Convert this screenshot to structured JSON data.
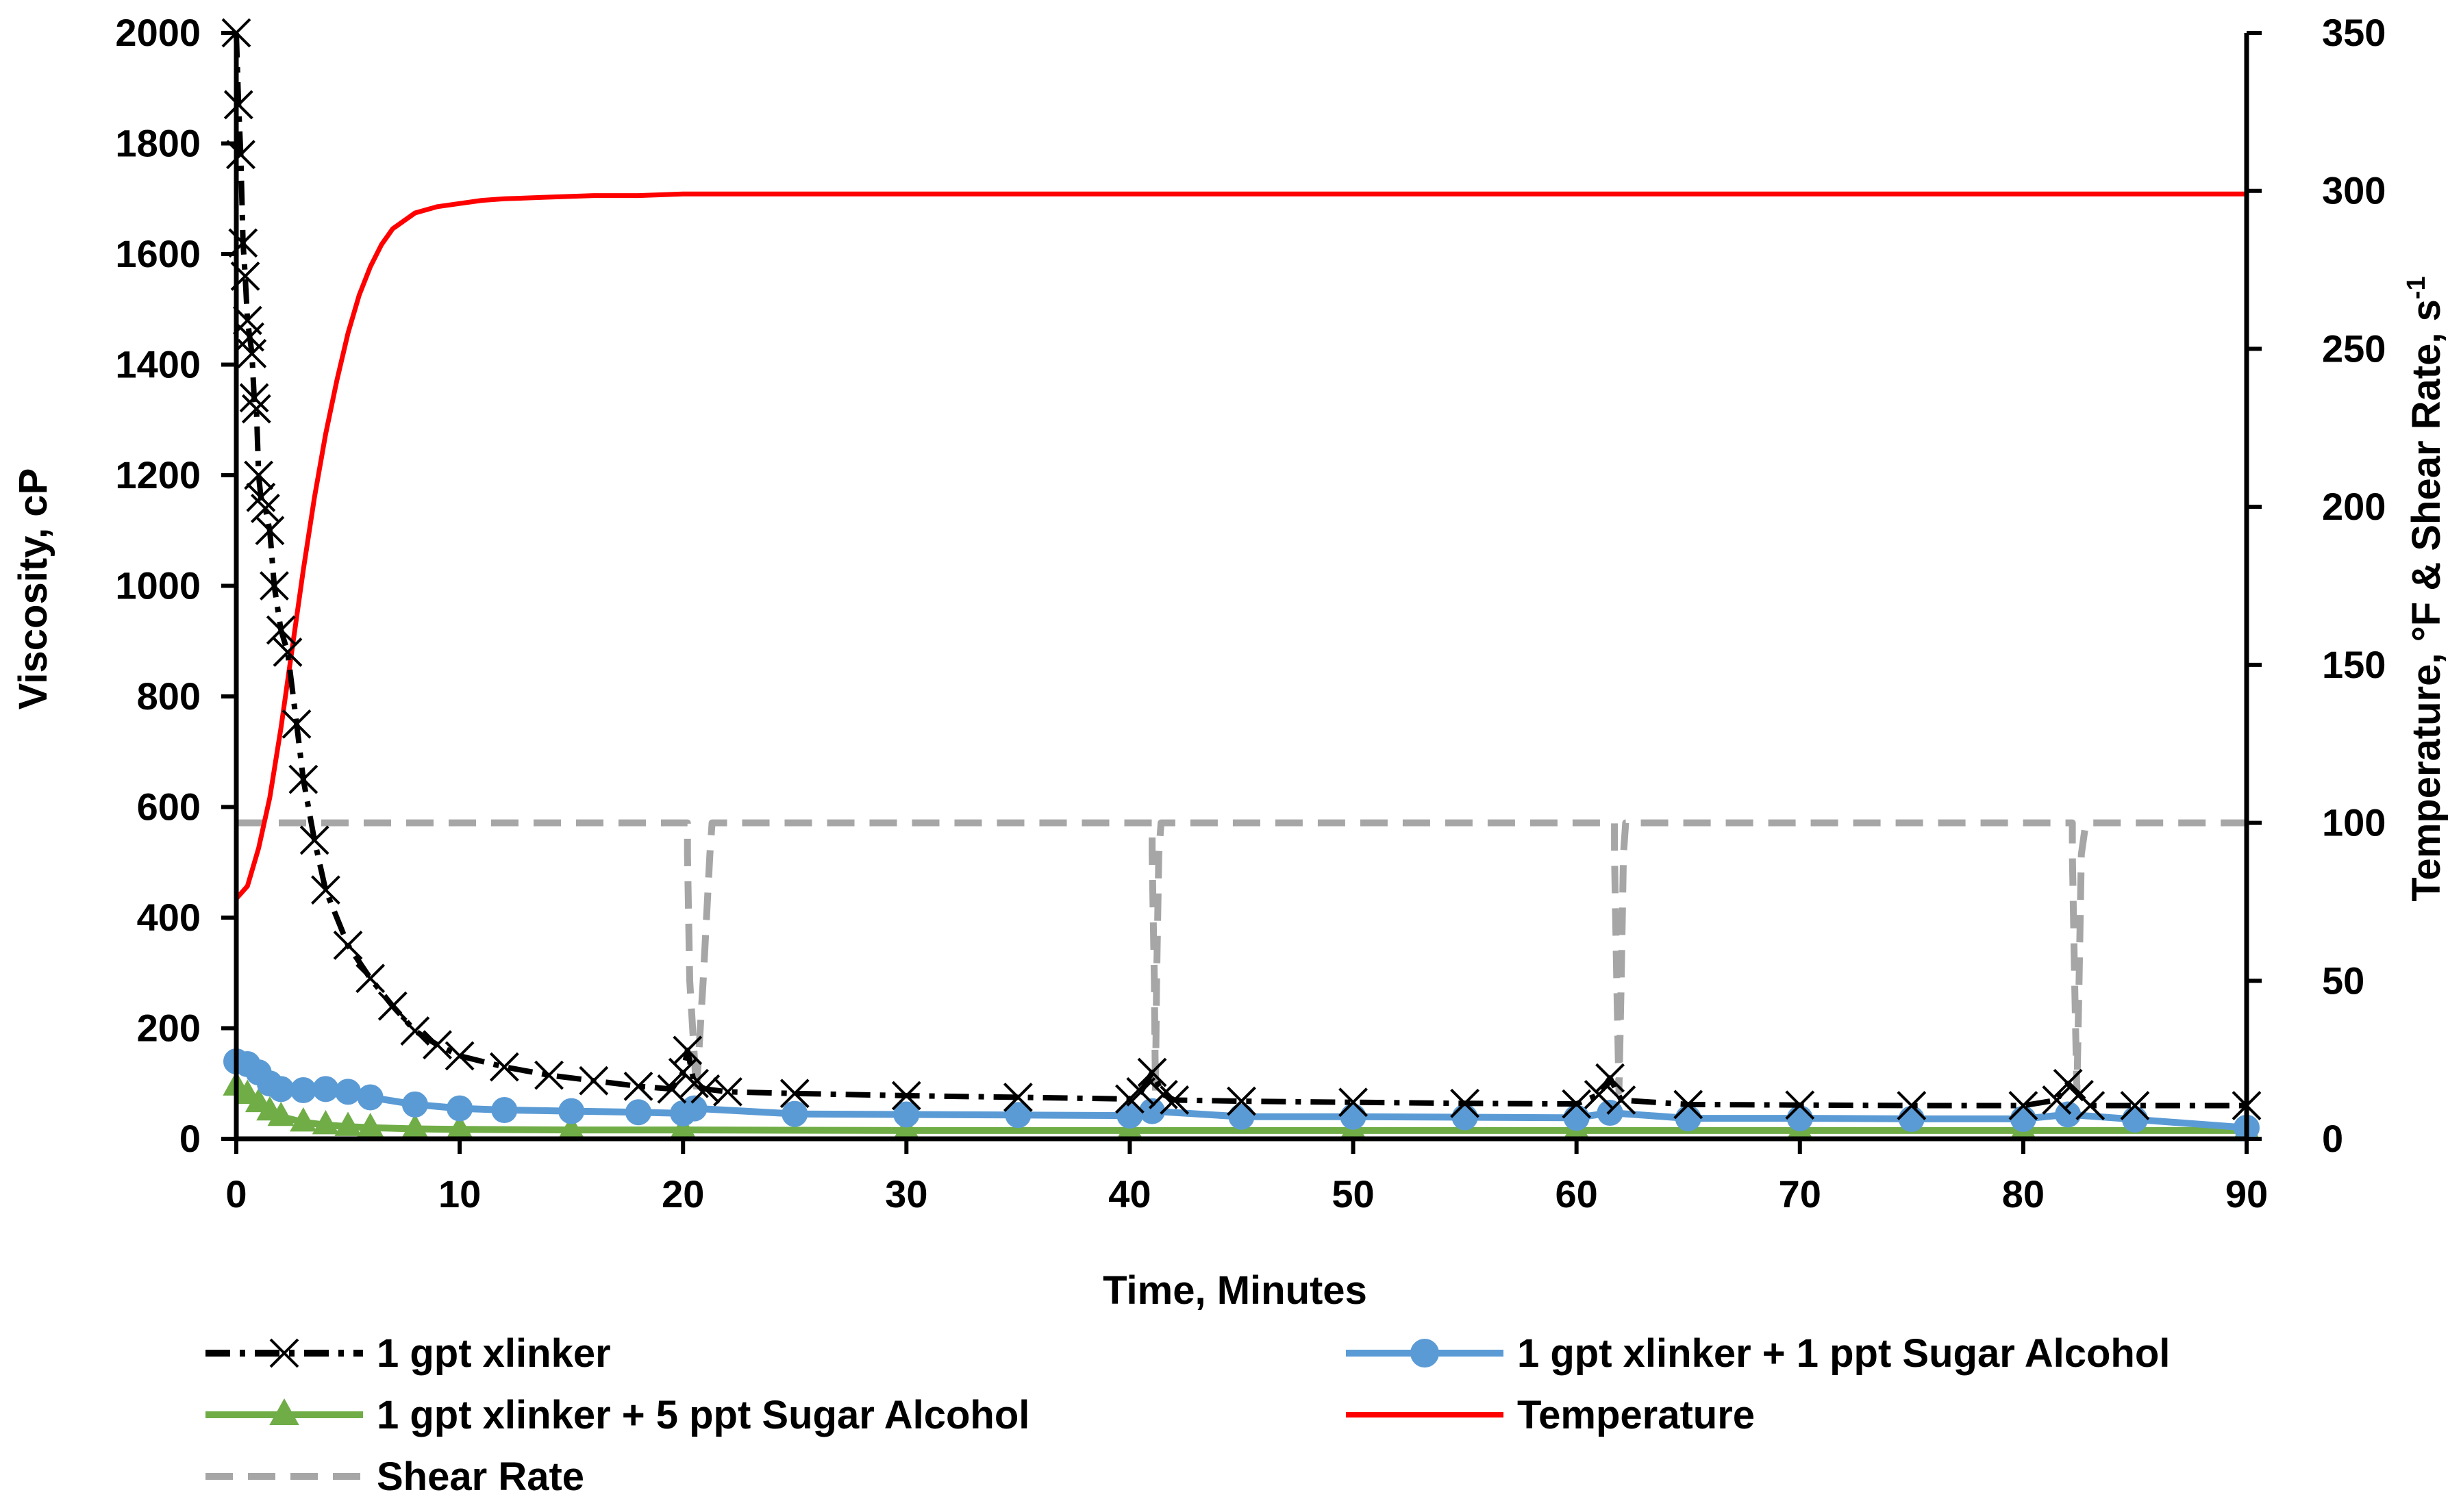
{
  "chart_data": {
    "type": "line",
    "xlabel": "Time, Minutes",
    "ylabel": "Viscosity, cP",
    "y2label_main": "Temperature, °F & Shear Rate, s",
    "y2label_sup": "-1",
    "xlim": [
      0,
      90
    ],
    "ylim": [
      0,
      2000
    ],
    "y2lim": [
      0,
      350
    ],
    "x_ticks": [
      "0",
      "10",
      "20",
      "30",
      "40",
      "50",
      "60",
      "70",
      "80",
      "90"
    ],
    "y_ticks": [
      "0",
      "200",
      "400",
      "600",
      "800",
      "1000",
      "1200",
      "1400",
      "1600",
      "1800",
      "2000"
    ],
    "y2_ticks": [
      "0",
      "50",
      "100",
      "150",
      "200",
      "250",
      "300",
      "350"
    ],
    "grid": false,
    "legend_position": "bottom",
    "series": [
      {
        "name": "1 gpt xlinker",
        "axis": "left",
        "color": "#000000",
        "marker": "x",
        "style": "dash-dot",
        "x": [
          0,
          0.1,
          0.2,
          0.3,
          0.4,
          0.5,
          0.6,
          0.7,
          0.8,
          0.9,
          1.0,
          1.1,
          1.3,
          1.5,
          1.7,
          2.0,
          2.3,
          2.7,
          3.0,
          3.5,
          4,
          5,
          6,
          7,
          8,
          9,
          10,
          12,
          14,
          16,
          18,
          19.5,
          20,
          20.2,
          20.5,
          21,
          22,
          25,
          30,
          35,
          40,
          40.5,
          41,
          41.5,
          42,
          45,
          50,
          55,
          60,
          61,
          61.5,
          62,
          65,
          70,
          75,
          80,
          81.5,
          82,
          82.5,
          83,
          85,
          90
        ],
        "values": [
          2000,
          1870,
          1780,
          1620,
          1560,
          1480,
          1450,
          1420,
          1340,
          1320,
          1200,
          1160,
          1140,
          1100,
          1000,
          920,
          880,
          750,
          650,
          540,
          450,
          350,
          290,
          240,
          195,
          170,
          150,
          130,
          115,
          105,
          95,
          90,
          120,
          160,
          100,
          90,
          85,
          82,
          78,
          75,
          72,
          85,
          120,
          80,
          70,
          68,
          66,
          64,
          63,
          80,
          110,
          70,
          62,
          61,
          60,
          60,
          70,
          100,
          80,
          60,
          60,
          60
        ]
      },
      {
        "name": "1 gpt xlinker + 1 ppt Sugar Alcohol",
        "axis": "left",
        "color": "#5B9BD5",
        "marker": "circle",
        "style": "solid",
        "x": [
          0,
          0.5,
          1,
          1.5,
          2,
          3,
          4,
          5,
          6,
          8,
          10,
          12,
          15,
          18,
          20,
          20.5,
          25,
          30,
          35,
          40,
          41,
          45,
          50,
          55,
          60,
          61.5,
          65,
          70,
          75,
          80,
          82,
          85,
          90
        ],
        "values": [
          140,
          135,
          120,
          100,
          90,
          88,
          90,
          85,
          75,
          62,
          55,
          52,
          50,
          48,
          46,
          55,
          45,
          44,
          43,
          42,
          50,
          40,
          40,
          39,
          38,
          47,
          37,
          37,
          36,
          36,
          44,
          35,
          20
        ]
      },
      {
        "name": "1 gpt xlinker + 5 ppt Sugar Alcohol",
        "axis": "left",
        "color": "#70AD47",
        "marker": "triangle",
        "style": "solid",
        "x": [
          0,
          0.5,
          1,
          1.5,
          2,
          3,
          4,
          5,
          6,
          8,
          10,
          15,
          20,
          30,
          40,
          50,
          60,
          70,
          80,
          90
        ],
        "values": [
          95,
          80,
          65,
          50,
          40,
          30,
          25,
          22,
          20,
          18,
          17,
          16,
          16,
          15,
          15,
          15,
          15,
          15,
          15,
          15
        ]
      },
      {
        "name": "Temperature",
        "axis": "right",
        "color": "#FF0000",
        "marker": "none",
        "style": "solid",
        "x": [
          0,
          0.5,
          1,
          1.5,
          2,
          2.5,
          3,
          3.5,
          4,
          4.5,
          5,
          5.5,
          6,
          6.5,
          7,
          8,
          9,
          10,
          11,
          12,
          14,
          16,
          18,
          20,
          30,
          40,
          50,
          60,
          70,
          80,
          90
        ],
        "values": [
          76,
          80,
          92,
          108,
          130,
          155,
          180,
          203,
          223,
          240,
          255,
          267,
          276,
          283,
          288,
          293,
          295,
          296,
          297,
          297.5,
          298,
          298.5,
          298.5,
          299,
          299,
          299,
          299,
          299,
          299,
          299,
          299
        ]
      },
      {
        "name": "Shear Rate",
        "axis": "right",
        "color": "#A6A6A6",
        "marker": "none",
        "style": "dashed",
        "x": [
          0,
          20.2,
          20.2,
          20.3,
          20.6,
          20.9,
          21.2,
          21.3,
          41.0,
          41.0,
          41.1,
          41.15,
          41.2,
          41.3,
          41.4,
          61.7,
          61.7,
          61.8,
          61.9,
          62.0,
          62.1,
          62.2,
          82.2,
          82.2,
          82.3,
          82.4,
          82.5,
          82.6,
          82.8,
          90
        ],
        "values": [
          100,
          100,
          90,
          50,
          15,
          50,
          90,
          100,
          100,
          90,
          50,
          15,
          50,
          90,
          100,
          100,
          90,
          50,
          15,
          50,
          90,
          100,
          100,
          90,
          50,
          15,
          50,
          90,
          100,
          100
        ]
      }
    ]
  }
}
